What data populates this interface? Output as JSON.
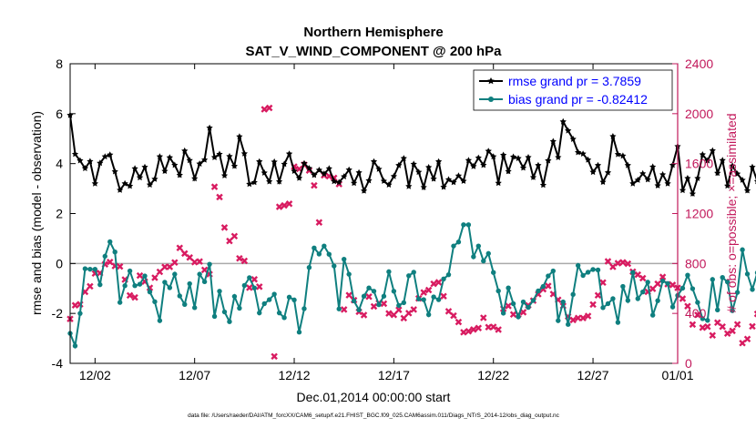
{
  "chart_data": {
    "type": "line",
    "title": "Northern Hemisphere",
    "subtitle": "SAT_V_WIND_COMPONENT @ 200 hPa",
    "xlabel": "Dec.01,2014 00:00:00 start",
    "ylabel_left": "rmse and bias (model - observation)",
    "ylabel_right": "# of obs: o=possible; ×=assimilated",
    "footer": "data file: /Users/raeder/DAI/ATM_forcXX/CAM6_setup/f.e21.FHIST_BGC.f09_025.CAM6assim.011/Diags_NTrS_2014-12/obs_diag_output.nc",
    "xlim": [
      0.75,
      31.25
    ],
    "ylim_left": [
      -4,
      8
    ],
    "ylim_right": [
      0,
      2400
    ],
    "y_ticks_left": [
      -4,
      -2,
      0,
      2,
      4,
      6,
      8
    ],
    "y_ticks_right": [
      0,
      400,
      800,
      1200,
      1600,
      2000,
      2400
    ],
    "x_ticks": [
      2,
      7,
      12,
      17,
      22,
      27,
      32
    ],
    "x_tick_labels": [
      "12/02",
      "12/07",
      "12/12",
      "12/17",
      "12/22",
      "12/27",
      "01/01"
    ],
    "colors": {
      "rmse": "#000000",
      "bias": "#0f7f7f",
      "obs": "#d81b60",
      "axis_right": "#c2185b",
      "zero": "#aaaaaa",
      "legend_text": "#0000ff"
    },
    "legend": [
      {
        "name": "rmse",
        "label": "rmse grand pr = 3.7859"
      },
      {
        "name": "bias",
        "label": "bias grand pr = -0.82412"
      }
    ],
    "x_start": 0.75,
    "x_step": 0.25,
    "series": [
      {
        "name": "rmse",
        "values": [
          5.94,
          4.38,
          4.12,
          3.81,
          4.09,
          3.2,
          4.02,
          4.28,
          4.35,
          3.68,
          2.94,
          3.2,
          3.1,
          3.8,
          3.44,
          3.86,
          3.15,
          3.38,
          4.28,
          3.7,
          4.24,
          3.94,
          3.54,
          4.51,
          4.13,
          3.4,
          3.99,
          4.15,
          5.43,
          4.25,
          4.38,
          3.52,
          4.29,
          3.9,
          5.08,
          4.4,
          3.18,
          3.25,
          4.08,
          3.63,
          3.28,
          4.07,
          3.28,
          3.98,
          4.39,
          3.7,
          3.42,
          4.01,
          3.81,
          3.54,
          3.74,
          3.59,
          3.8,
          3.29,
          3.25,
          3.48,
          3.75,
          3.22,
          3.64,
          2.91,
          3.32,
          4.08,
          3.78,
          3.3,
          3.15,
          3.49,
          3.93,
          4.21,
          3.09,
          3.98,
          3.66,
          3.05,
          3.85,
          3.39,
          4.08,
          3.06,
          3.36,
          3.25,
          3.51,
          3.3,
          4.13,
          3.89,
          4.23,
          3.94,
          4.5,
          4.28,
          3.22,
          4.34,
          3.69,
          4.27,
          4.21,
          3.83,
          4.25,
          3.45,
          3.93,
          3.14,
          4.12,
          4.89,
          4.25,
          5.68,
          5.32,
          4.98,
          4.45,
          4.39,
          4.15,
          3.66,
          3.93,
          3.26,
          3.64,
          5.09,
          4.37,
          4.31,
          3.93,
          3.2,
          3.34,
          3.6,
          3.36,
          3.87,
          3.12,
          3.56,
          3.2,
          3.94,
          4.69,
          2.93,
          3.41,
          2.79,
          3.41,
          4.36,
          4.12,
          4.52,
          3.62,
          4.13,
          3.11,
          3.91,
          3.59,
          3.34,
          2.92,
          3.86,
          3.29,
          2.53,
          3.8,
          3.08,
          4.03,
          3.7,
          2.95,
          3.76,
          2.97,
          3.12,
          3.65,
          5.0,
          2.79,
          3.38,
          2.98,
          3.11,
          3.07,
          2.89,
          2.67,
          3.7
        ]
      },
      {
        "name": "bias",
        "values": [
          -2.8,
          -3.3,
          -2.0,
          -0.21,
          -0.23,
          -0.23,
          -0.85,
          0.29,
          0.87,
          0.46,
          -1.56,
          -0.89,
          -0.3,
          -0.89,
          -0.83,
          -0.5,
          -1.14,
          -1.53,
          -2.29,
          -0.75,
          -0.97,
          -0.43,
          -1.3,
          -1.64,
          -0.81,
          -1.77,
          -0.43,
          -0.73,
          -0.03,
          -2.12,
          -1.11,
          -1.94,
          -2.33,
          -1.32,
          -1.79,
          -0.88,
          -0.57,
          -0.98,
          -1.98,
          -1.61,
          -1.45,
          -1.23,
          -1.98,
          -2.17,
          -1.35,
          -1.46,
          -2.75,
          -1.81,
          -0.16,
          0.62,
          0.38,
          0.7,
          0.37,
          -0.1,
          -1.82,
          0.17,
          -0.43,
          -1.5,
          -1.86,
          -1.31,
          -0.98,
          -1.11,
          -1.65,
          -1.31,
          -0.33,
          -1.11,
          -1.68,
          -1.57,
          -0.49,
          -0.35,
          -1.42,
          -1.45,
          -2.05,
          -1.34,
          -1.45,
          -0.62,
          -0.45,
          0.7,
          0.86,
          1.55,
          1.55,
          0.27,
          0.7,
          0.1,
          0.4,
          -0.36,
          -1.1,
          -1.99,
          -0.98,
          -1.61,
          -2.14,
          -1.54,
          -1.76,
          -1.48,
          -1.1,
          -0.92,
          -0.5,
          -0.3,
          -2.29,
          -1.54,
          -2.44,
          -1.24,
          -0.08,
          -0.48,
          -0.35,
          -0.24,
          -0.26,
          -1.77,
          -1.61,
          -1.41,
          -2.36,
          -0.92,
          -1.48,
          -0.36,
          -1.41,
          -1.14,
          -0.75,
          -2.07,
          -1.49,
          -0.7,
          -0.8,
          -1.74,
          -1.28,
          -0.99,
          -0.47,
          -1.01,
          -1.56,
          -2.21,
          -2.28,
          -0.64,
          -1.86,
          -0.56,
          -0.74,
          -1.89,
          -1.16,
          0.55,
          -0.42,
          -1.04,
          -0.37,
          -0.83,
          -0.39,
          -1.13,
          -2.23,
          -1.81,
          -0.58,
          -0.95,
          -1.44,
          -0.86,
          -1.57,
          -2.76,
          -0.95,
          -1.8,
          0.2,
          0.26,
          0.52,
          0.73
        ]
      },
      {
        "name": "obs_assimilated",
        "values": [
          356,
          465,
          473,
          573,
          617,
          720,
          723,
          793,
          812,
          780,
          776,
          671,
          544,
          528,
          703,
          655,
          605,
          686,
          733,
          772,
          773,
          808,
          925,
          880,
          848,
          811,
          816,
          749,
          714,
          1414,
          1332,
          1088,
          980,
          1019,
          841,
          821,
          606,
          673,
          614,
          2035,
          2046,
          56,
          1254,
          1265,
          1278,
          1576,
          1557,
          1591,
          1545,
          1425,
          1129,
          1506,
          1499,
          1485,
          1436,
          431,
          546,
          506,
          413,
          387,
          534,
          456,
          483,
          478,
          400,
          388,
          429,
          362,
          402,
          431,
          520,
          568,
          587,
          637,
          649,
          538,
          417,
          382,
          331,
          249,
          257,
          271,
          283,
          365,
          290,
          292,
          270,
          437,
          460,
          392,
          390,
          409,
          465,
          502,
          554,
          594,
          620,
          555,
          509,
          460,
          375,
          347,
          363,
          363,
          379,
          471,
          545,
          647,
          817,
          773,
          802,
          809,
          798,
          734,
          710,
          682,
          573,
          597,
          637,
          692,
          634,
          628,
          605,
          518,
          458,
          311,
          388,
          286,
          294,
          224,
          326,
          294,
          239,
          260,
          312,
          162,
          195,
          296,
          396,
          445,
          562,
          588,
          654,
          693,
          722,
          826,
          930,
          1027,
          1026,
          1111,
          1149,
          954,
          866,
          933,
          1090,
          852,
          903,
          1109,
          857,
          1116,
          982,
          1081,
          1023,
          983,
          1007,
          935,
          931,
          1104,
          947,
          848,
          724,
          632,
          610,
          647,
          631,
          659,
          660,
          589,
          512,
          467,
          436,
          510,
          517,
          518,
          474,
          393,
          267,
          210,
          216,
          367,
          388,
          374,
          481,
          596,
          709,
          630,
          643,
          651,
          638,
          652,
          615,
          501,
          466,
          506,
          561,
          606,
          697,
          769,
          802,
          829,
          848,
          888,
          846,
          753,
          654,
          558,
          489,
          548,
          611,
          669,
          669,
          596,
          412,
          351,
          347,
          445,
          481,
          423,
          456,
          443,
          493,
          609,
          603,
          687,
          697,
          652,
          749,
          777,
          758,
          851,
          854,
          822,
          818,
          856,
          834,
          763,
          723,
          699,
          669,
          623,
          596,
          585,
          512,
          531,
          582,
          672,
          593,
          594,
          538,
          531,
          514,
          509,
          470,
          406,
          390,
          418,
          349,
          368,
          356,
          329,
          255,
          280,
          276,
          271,
          253,
          253,
          342,
          293,
          307,
          327,
          268,
          269,
          191,
          213,
          245,
          263,
          251,
          306,
          303,
          289,
          276,
          238,
          249,
          217,
          258,
          276,
          287,
          238,
          263,
          197,
          233,
          238,
          204,
          157,
          167,
          190,
          126,
          94,
          64,
          62,
          40,
          70,
          109,
          113,
          135,
          111,
          115,
          143,
          148,
          173,
          159,
          136,
          108,
          101,
          94,
          86,
          79,
          106,
          121,
          134,
          147,
          118,
          111,
          96,
          101,
          113,
          112,
          121,
          116,
          123,
          137,
          147,
          143,
          149,
          130,
          120,
          111,
          122,
          125,
          129,
          116,
          103,
          95,
          85,
          80,
          70,
          72,
          73,
          62,
          58,
          64,
          74,
          64,
          67,
          62,
          58,
          54,
          49,
          51,
          50,
          54,
          56,
          60,
          62,
          60,
          54,
          48,
          44,
          42,
          42,
          40,
          35,
          33,
          32,
          30,
          29,
          30,
          30,
          34,
          35,
          35,
          36,
          34,
          34,
          35,
          36,
          36,
          34,
          34,
          34,
          34,
          35,
          35,
          35,
          36,
          37,
          37,
          38
        ]
      }
    ]
  }
}
